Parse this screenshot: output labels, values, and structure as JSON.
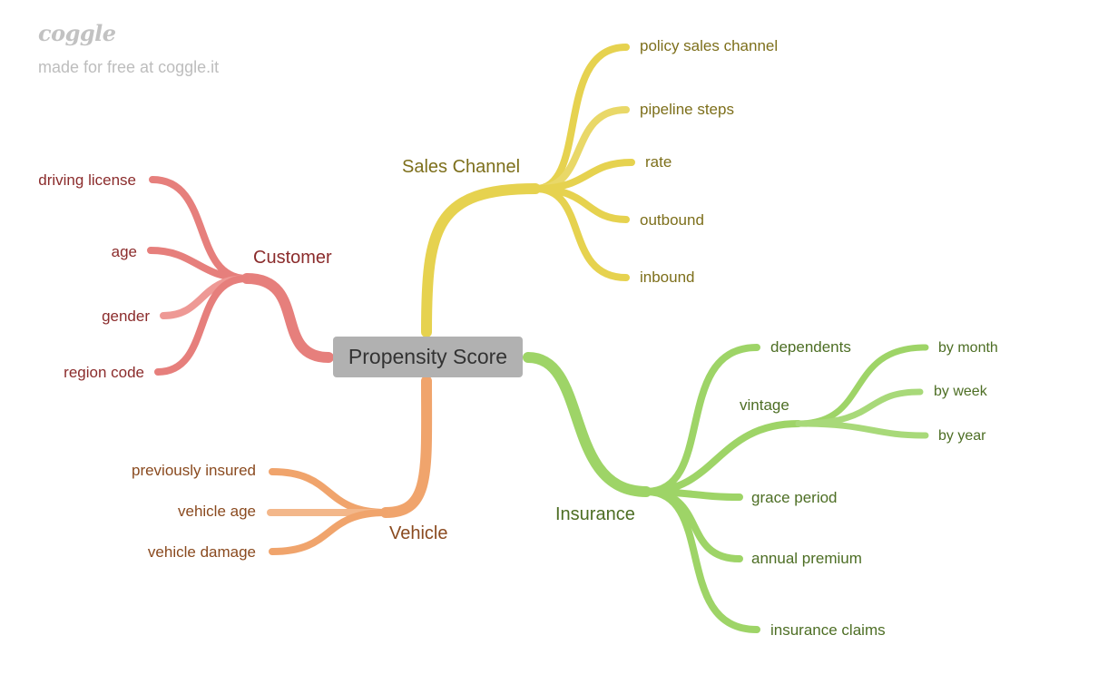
{
  "brand": {
    "logo": "coggle",
    "tagline": "made for free at coggle.it"
  },
  "colors": {
    "customer": "#e67f7c",
    "sales": "#e6d24f",
    "vehicle": "#f0a46c",
    "insurance": "#9ed467",
    "customer_text": "#8b2c2c",
    "sales_text": "#7d6f1b",
    "vehicle_text": "#8a4a1f",
    "insurance_text": "#4d6e24"
  },
  "root": {
    "label": "Propensity Score"
  },
  "branches": {
    "customer": {
      "label": "Customer",
      "children": [
        "driving license",
        "age",
        "gender",
        "region code"
      ]
    },
    "sales": {
      "label": "Sales Channel",
      "children": [
        "policy sales channel",
        "pipeline steps",
        "rate",
        "outbound",
        "inbound"
      ]
    },
    "vehicle": {
      "label": "Vehicle",
      "children": [
        "previously insured",
        "vehicle age",
        "vehicle damage"
      ]
    },
    "insurance": {
      "label": "Insurance",
      "children": [
        "dependents",
        "vintage",
        "grace period",
        "annual premium",
        "insurance claims"
      ],
      "vintage_children": [
        "by month",
        "by week",
        "by year"
      ]
    }
  }
}
